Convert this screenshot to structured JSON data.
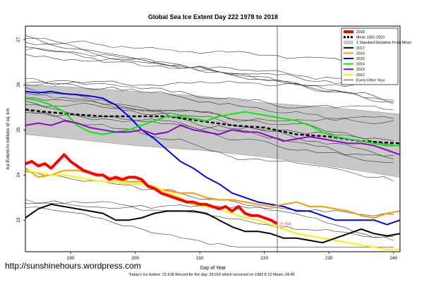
{
  "site": "http://sunshinehours.wordpress.com",
  "chart_data": {
    "type": "line",
    "title": "Global Sea Ice Extent Day 222 1978 to 2018",
    "xlabel": "Day of Year",
    "ylabel": "Ice Extent in millions of sq. km",
    "footer": "Today's Ice Extent: 22.918   Record for the day: 26.016 which occurred on 1982 8 10   Mean: 24.96",
    "xlim": [
      183,
      241
    ],
    "ylim": [
      22.3,
      27.3
    ],
    "xticks": [
      190,
      200,
      210,
      220,
      230,
      240
    ],
    "yticks": [
      23,
      24,
      25,
      26,
      27
    ],
    "marker": {
      "x": 222,
      "color": "#666666"
    },
    "current_label": {
      "x": 222.3,
      "y": 22.92,
      "text": "22.918",
      "color": "#ee2222"
    },
    "grey_seeds": [
      3,
      7,
      11,
      13,
      17,
      19,
      23,
      29,
      31,
      37,
      41,
      43,
      47,
      53,
      59,
      61,
      67,
      71,
      73,
      79
    ],
    "legend": [
      {
        "label": "2018",
        "color": "#ff0000",
        "style": "solid",
        "width": 4
      },
      {
        "label": "Mean 1981-2010",
        "color": "#000000",
        "style": "dash",
        "width": 3
      },
      {
        "label": "1 Standard Deviation From Mean",
        "color": "#c8c8c8",
        "style": "box",
        "width": 6
      },
      {
        "label": "2017",
        "color": "#000000",
        "style": "solid",
        "width": 2
      },
      {
        "label": "2016",
        "color": "#ff9900",
        "style": "solid",
        "width": 2
      },
      {
        "label": "2015",
        "color": "#0000ee",
        "style": "solid",
        "width": 2
      },
      {
        "label": "2014",
        "color": "#00ee00",
        "style": "solid",
        "width": 2
      },
      {
        "label": "2013",
        "color": "#9900cc",
        "style": "solid",
        "width": 2
      },
      {
        "label": "2012",
        "color": "#ffee00",
        "style": "solid",
        "width": 2
      },
      {
        "label": "Every Other Year",
        "color": "#444444",
        "style": "solid",
        "width": 1
      }
    ],
    "band": {
      "x": [
        183,
        190,
        200,
        210,
        220,
        230,
        241
      ],
      "upper": [
        26.0,
        25.95,
        25.85,
        25.75,
        25.6,
        25.5,
        25.35
      ],
      "lower": [
        24.9,
        24.8,
        24.65,
        24.55,
        24.4,
        24.2,
        23.95
      ]
    },
    "series": [
      {
        "name": "Mean 1981-2010",
        "color": "#000000",
        "width": 2.5,
        "dash": "5,3",
        "x": [
          183,
          186,
          190,
          195,
          200,
          205,
          210,
          215,
          220,
          225,
          230,
          235,
          241
        ],
        "y": [
          25.45,
          25.4,
          25.35,
          25.3,
          25.3,
          25.3,
          25.2,
          25.1,
          25.05,
          24.9,
          24.85,
          24.75,
          24.7
        ]
      },
      {
        "name": "2015",
        "color": "#0000ee",
        "width": 2,
        "x": [
          183,
          185,
          187,
          189,
          191,
          193,
          195,
          197,
          199,
          201,
          203,
          205,
          207,
          209,
          211,
          213,
          215,
          217,
          219,
          221,
          223,
          225,
          227,
          229,
          231,
          233,
          235,
          237,
          239,
          241
        ],
        "y": [
          25.85,
          25.82,
          25.85,
          25.8,
          25.78,
          25.75,
          25.7,
          25.55,
          25.3,
          25.0,
          24.8,
          24.55,
          24.3,
          24.15,
          23.95,
          23.8,
          23.6,
          23.5,
          23.4,
          23.35,
          23.3,
          23.2,
          23.2,
          23.1,
          23.0,
          23.0,
          23.0,
          23.0,
          22.9,
          23.0
        ]
      },
      {
        "name": "2014",
        "color": "#00ee00",
        "width": 2,
        "x": [
          183,
          185,
          187,
          189,
          191,
          193,
          195,
          197,
          199,
          201,
          203,
          205,
          207,
          209,
          211,
          213,
          215,
          217,
          219,
          221,
          223,
          225,
          227,
          229,
          231,
          233,
          235,
          237,
          239,
          241
        ],
        "y": [
          25.7,
          25.65,
          25.55,
          25.4,
          25.1,
          24.95,
          24.9,
          24.95,
          25.0,
          25.1,
          25.2,
          25.3,
          25.3,
          25.25,
          25.2,
          25.3,
          25.35,
          25.4,
          25.35,
          25.3,
          25.25,
          25.2,
          25.1,
          24.95,
          24.85,
          24.8,
          24.75,
          24.7,
          24.65,
          24.65
        ]
      },
      {
        "name": "2013",
        "color": "#9900cc",
        "width": 2,
        "x": [
          183,
          185,
          187,
          189,
          191,
          193,
          195,
          197,
          199,
          201,
          203,
          205,
          207,
          209,
          211,
          213,
          215,
          217,
          219,
          221,
          223,
          225,
          227,
          229,
          231,
          233,
          235,
          237,
          239,
          241
        ],
        "y": [
          25.1,
          25.15,
          25.1,
          25.2,
          25.15,
          25.05,
          25.0,
          24.95,
          24.95,
          25.0,
          24.9,
          24.95,
          25.1,
          25.0,
          24.95,
          24.9,
          25.0,
          24.95,
          24.95,
          24.85,
          24.75,
          24.8,
          24.85,
          24.8,
          24.75,
          24.7,
          24.7,
          24.65,
          24.55,
          24.45
        ]
      },
      {
        "name": "2016",
        "color": "#ff9900",
        "width": 2,
        "x": [
          183,
          185,
          187,
          189,
          191,
          193,
          195,
          197,
          199,
          201,
          203,
          205,
          207,
          209,
          211,
          213,
          215,
          217,
          219,
          221,
          223,
          225,
          227,
          229,
          231,
          233,
          235,
          237,
          239,
          241
        ],
        "y": [
          24.15,
          23.95,
          24.0,
          24.1,
          24.1,
          24.05,
          24.0,
          23.9,
          23.85,
          23.85,
          23.7,
          23.65,
          23.6,
          23.6,
          23.5,
          23.45,
          23.45,
          23.4,
          23.35,
          23.3,
          23.35,
          23.4,
          23.3,
          23.3,
          23.25,
          23.2,
          23.1,
          23.05,
          23.15,
          23.2
        ]
      },
      {
        "name": "2012",
        "color": "#ffee00",
        "width": 2,
        "x": [
          183,
          185,
          187,
          189,
          191,
          193,
          195,
          197,
          199,
          201,
          203,
          205,
          207,
          209,
          211,
          213,
          215,
          217,
          219,
          221,
          223,
          225,
          227,
          229,
          231,
          233,
          235,
          237,
          239,
          241
        ],
        "y": [
          24.1,
          24.05,
          24.0,
          24.0,
          23.95,
          23.9,
          23.85,
          23.85,
          23.8,
          23.8,
          23.75,
          23.6,
          23.5,
          23.35,
          23.3,
          23.25,
          23.15,
          23.05,
          23.0,
          22.9,
          22.8,
          22.7,
          22.65,
          22.6,
          22.55,
          22.5,
          22.45,
          22.4,
          22.35,
          22.35
        ]
      },
      {
        "name": "2017",
        "color": "#000000",
        "width": 2,
        "x": [
          183,
          185,
          187,
          189,
          191,
          193,
          195,
          197,
          199,
          201,
          203,
          205,
          207,
          209,
          211,
          213,
          215,
          217,
          219,
          221,
          223,
          225,
          227,
          229,
          231,
          233,
          235,
          237,
          239,
          241
        ],
        "y": [
          23.05,
          23.25,
          23.35,
          23.3,
          23.25,
          23.2,
          23.15,
          23.0,
          23.0,
          23.05,
          23.15,
          23.2,
          23.2,
          23.2,
          23.15,
          23.0,
          22.85,
          22.75,
          22.75,
          22.7,
          22.6,
          22.6,
          22.55,
          22.5,
          22.6,
          22.7,
          22.8,
          22.7,
          22.65,
          22.7
        ]
      },
      {
        "name": "2018",
        "color": "#ff0000",
        "width": 4,
        "x": [
          183,
          184,
          185,
          186,
          187,
          188,
          189,
          190,
          191,
          192,
          193,
          194,
          195,
          196,
          197,
          198,
          199,
          200,
          201,
          202,
          203,
          204,
          205,
          206,
          207,
          208,
          209,
          210,
          211,
          212,
          213,
          214,
          215,
          216,
          217,
          218,
          219,
          220,
          221,
          222
        ],
        "y": [
          24.25,
          24.3,
          24.2,
          24.25,
          24.15,
          24.3,
          24.45,
          24.3,
          24.2,
          24.1,
          24.05,
          24.0,
          24.0,
          23.9,
          23.95,
          23.9,
          23.95,
          23.95,
          23.9,
          23.75,
          23.7,
          23.6,
          23.55,
          23.5,
          23.45,
          23.4,
          23.4,
          23.35,
          23.35,
          23.3,
          23.25,
          23.3,
          23.2,
          23.3,
          23.15,
          23.1,
          23.1,
          23.05,
          23.0,
          22.92
        ]
      }
    ]
  }
}
